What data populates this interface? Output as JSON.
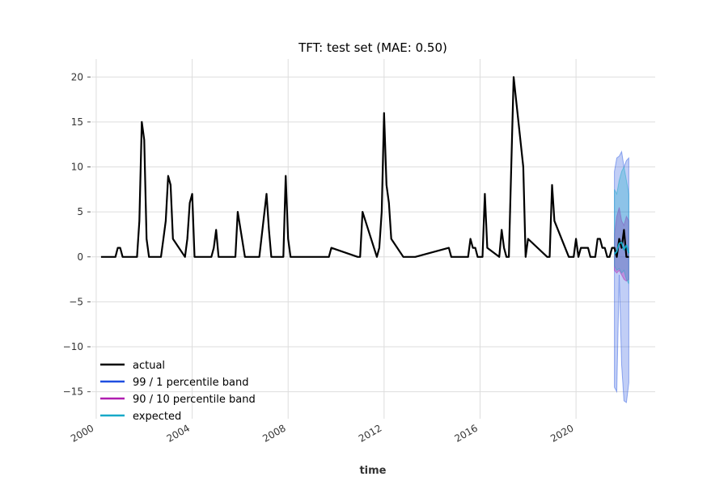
{
  "chart_data": {
    "type": "line",
    "title": "TFT: test set (MAE: 0.50)",
    "xlabel": "time",
    "ylabel": "",
    "xlim": [
      1999.8,
      2023.3
    ],
    "ylim": [
      -18,
      22
    ],
    "x_ticks": [
      2000,
      2004,
      2008,
      2012,
      2016,
      2020
    ],
    "x_tick_labels": [
      "2000",
      "2004",
      "2008",
      "2012",
      "2016",
      "2020"
    ],
    "y_ticks": [
      -15,
      -10,
      -5,
      0,
      5,
      10,
      15,
      20
    ],
    "y_tick_labels": [
      "−15",
      "−10",
      "−5",
      "0",
      "5",
      "10",
      "15",
      "20"
    ],
    "grid": true,
    "legend_position": "lower-left",
    "colors": {
      "actual": "#000000",
      "band_99_1": "#1f4fe0",
      "band_90_10": "#b01eb0",
      "expected": "#17a9c8",
      "grid": "#dddddd",
      "text": "#333333"
    },
    "legend": [
      {
        "label": "actual",
        "color": "#000000"
      },
      {
        "label": "99 / 1 percentile band",
        "color": "#1f4fe0"
      },
      {
        "label": "90 / 10 percentile band",
        "color": "#b01eb0"
      },
      {
        "label": "expected",
        "color": "#17a9c8"
      }
    ],
    "series": [
      {
        "name": "actual",
        "x": [
          2000.2,
          2000.8,
          2000.9,
          2001.0,
          2001.1,
          2001.7,
          2001.8,
          2001.9,
          2002.0,
          2002.1,
          2002.2,
          2002.7,
          2002.8,
          2002.9,
          2003.0,
          2003.1,
          2003.2,
          2003.7,
          2003.8,
          2003.9,
          2004.0,
          2004.1,
          2004.8,
          2004.9,
          2005.0,
          2005.1,
          2005.7,
          2005.8,
          2005.9,
          2006.2,
          2006.7,
          2006.8,
          2007.1,
          2007.2,
          2007.3,
          2007.8,
          2007.9,
          2008.0,
          2008.1,
          2009.6,
          2009.7,
          2009.8,
          2010.9,
          2011.0,
          2011.1,
          2011.7,
          2011.8,
          2011.9,
          2012.0,
          2012.1,
          2012.2,
          2012.3,
          2012.8,
          2012.9,
          2013.0,
          2013.1,
          2013.2,
          2013.3,
          2014.7,
          2014.8,
          2014.9,
          2015.0,
          2015.1,
          2015.5,
          2015.6,
          2015.7,
          2015.8,
          2015.9,
          2016.0,
          2016.1,
          2016.2,
          2016.3,
          2016.8,
          2016.9,
          2017.0,
          2017.1,
          2017.2,
          2017.4,
          2017.8,
          2017.9,
          2018.0,
          2018.8,
          2018.9,
          2019.0,
          2019.1,
          2019.7,
          2019.9,
          2020.0,
          2020.1,
          2020.2,
          2020.5,
          2020.6,
          2020.7,
          2020.8,
          2020.9,
          2021.0,
          2021.1,
          2021.2,
          2021.3,
          2021.4,
          2021.5,
          2021.6,
          2021.7,
          2021.8,
          2021.9,
          2022.0,
          2022.1,
          2022.2
        ],
        "values": [
          0,
          0,
          1,
          1,
          0,
          0,
          4,
          15,
          13,
          2,
          0,
          0,
          2,
          4,
          9,
          8,
          2,
          0,
          2,
          6,
          7,
          0,
          0,
          1,
          3,
          0,
          0,
          0,
          5,
          0,
          0,
          0,
          7,
          3,
          0,
          0,
          9,
          2,
          0,
          0,
          0,
          1,
          0,
          0,
          5,
          0,
          1,
          5,
          16,
          8,
          6,
          2,
          0,
          0,
          0,
          0,
          0,
          0,
          1,
          0,
          0,
          0,
          0,
          0,
          2,
          1,
          1,
          0,
          0,
          0,
          7,
          1,
          0,
          3,
          1,
          0,
          0,
          20,
          10,
          0,
          2,
          0,
          0,
          8,
          4,
          0,
          0,
          2,
          0,
          1,
          1,
          0,
          0,
          0,
          2,
          2,
          1,
          1,
          0,
          0,
          1,
          1,
          0,
          2,
          1,
          3,
          0,
          0
        ]
      },
      {
        "name": "expected",
        "x": [
          2021.6,
          2021.7,
          2021.8,
          2021.9,
          2022.0,
          2022.1,
          2022.2
        ],
        "values": [
          0.3,
          0.6,
          1.5,
          1.6,
          0.8,
          1.3,
          0.4
        ]
      }
    ],
    "bands": [
      {
        "name": "99 / 1 percentile band",
        "x": [
          2021.6,
          2021.7,
          2021.8,
          2021.9,
          2022.0,
          2022.1,
          2022.2
        ],
        "upper": [
          9.5,
          11,
          11.2,
          11.7,
          10,
          10.7,
          11
        ],
        "lower": [
          -14.5,
          -15,
          -2,
          -12,
          -16,
          -16.2,
          -14
        ]
      },
      {
        "name": "90 / 10 percentile band",
        "x": [
          2021.6,
          2021.7,
          2021.8,
          2021.9,
          2022.0,
          2022.1,
          2022.2
        ],
        "upper": [
          2.5,
          4.5,
          5.5,
          4,
          3.5,
          4.5,
          4
        ],
        "lower": [
          -1.5,
          -1.8,
          -1.5,
          -2,
          -2.5,
          -2.7,
          -2.5
        ]
      },
      {
        "name": "expected",
        "x": [
          2021.6,
          2021.7,
          2021.8,
          2021.9,
          2022.0,
          2022.1,
          2022.2
        ],
        "upper": [
          7.5,
          7,
          8.5,
          9.5,
          10,
          8.5,
          7
        ],
        "lower": [
          -1,
          -1.5,
          -1.3,
          -1.8,
          -1.5,
          -2.5,
          -3
        ]
      }
    ]
  }
}
